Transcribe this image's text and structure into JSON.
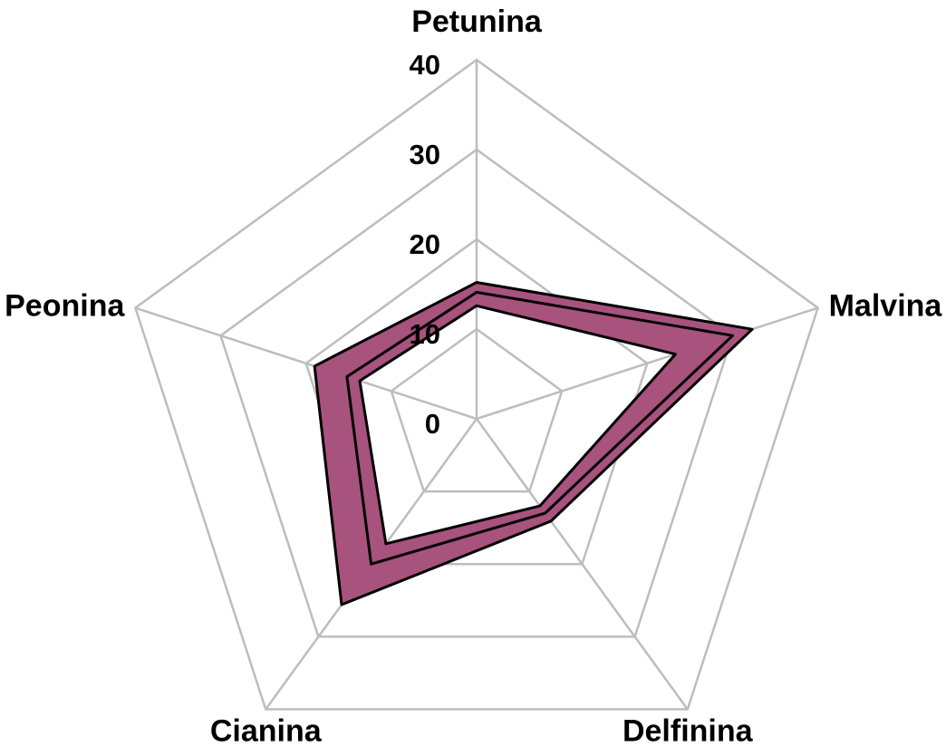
{
  "chart_data": {
    "type": "radar",
    "categories": [
      "Petunina",
      "Malvina",
      "Delfinina",
      "Cianina",
      "Peonina"
    ],
    "series": [
      {
        "color": "#000000",
        "values": [
          15.2,
          32.3,
          14.1,
          25.6,
          19.0
        ]
      },
      {
        "color": "#000000",
        "values": [
          14.1,
          30.0,
          13.0,
          20.0,
          15.2
        ]
      },
      {
        "color": "#000000",
        "values": [
          12.6,
          23.3,
          12.0,
          17.2,
          13.7
        ]
      }
    ],
    "band_color": "#a8527e",
    "ylim": [
      0,
      40
    ],
    "yticks": [
      0,
      10,
      20,
      30,
      40
    ],
    "grid": true
  }
}
